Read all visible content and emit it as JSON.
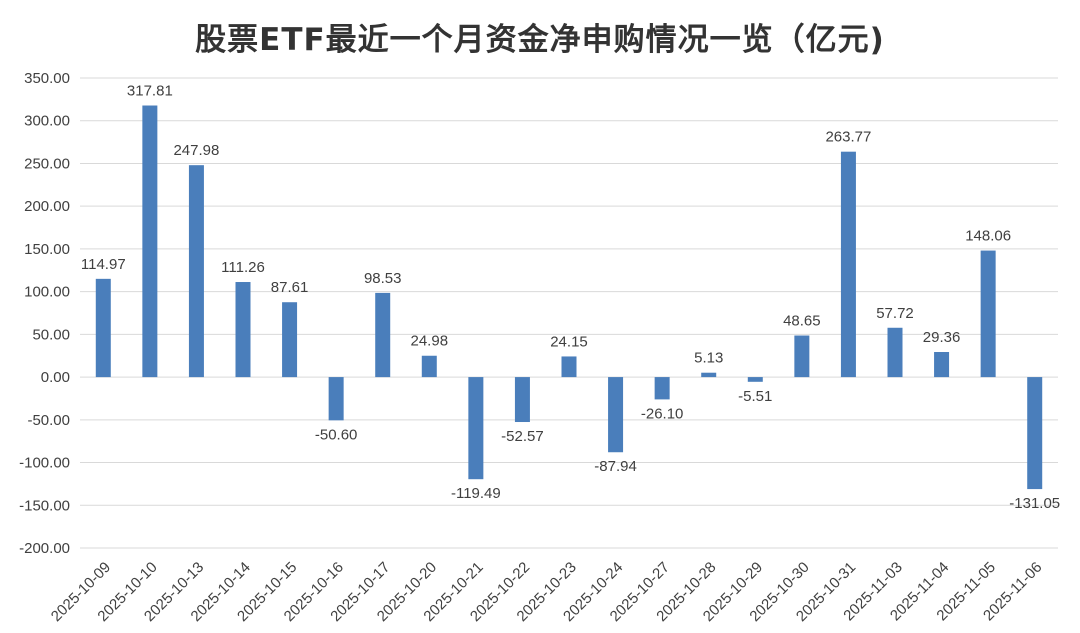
{
  "chart_data": {
    "type": "bar",
    "title": "股票ETF最近一个月资金净申购情况一览（亿元)",
    "xlabel": "",
    "ylabel": "",
    "ylim": [
      -200,
      350
    ],
    "ytick_step": 50,
    "grid": true,
    "legend": "none",
    "bar_color": "#4a7ebb",
    "categories": [
      "2025-10-09",
      "2025-10-10",
      "2025-10-13",
      "2025-10-14",
      "2025-10-15",
      "2025-10-16",
      "2025-10-17",
      "2025-10-20",
      "2025-10-21",
      "2025-10-22",
      "2025-10-23",
      "2025-10-24",
      "2025-10-27",
      "2025-10-28",
      "2025-10-29",
      "2025-10-30",
      "2025-10-31",
      "2025-11-03",
      "2025-11-04",
      "2025-11-05",
      "2025-11-06"
    ],
    "values": [
      114.97,
      317.81,
      247.98,
      111.26,
      87.61,
      -50.6,
      98.53,
      24.98,
      -119.49,
      -52.57,
      24.15,
      -87.94,
      -26.1,
      5.13,
      -5.51,
      48.65,
      263.77,
      57.72,
      29.36,
      148.06,
      -131.05
    ]
  }
}
